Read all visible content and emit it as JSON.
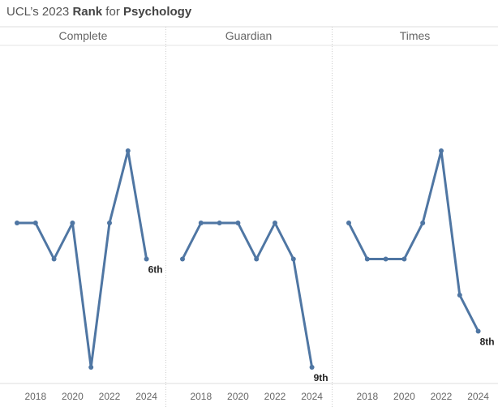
{
  "title": {
    "prefix": "UCL’s 2023 ",
    "bold1": "Rank",
    "middle": " for ",
    "bold2": "Psychology"
  },
  "line_color": "#4f76a3",
  "chart_data": [
    {
      "type": "line",
      "panel": "Complete",
      "x": [
        2017,
        2018,
        2019,
        2020,
        2021,
        2022,
        2023,
        2024
      ],
      "y": [
        5,
        5,
        6,
        5,
        9,
        5,
        3,
        6
      ],
      "end_label": "6th",
      "xticks": [
        "2018",
        "2020",
        "2022",
        "2024"
      ]
    },
    {
      "type": "line",
      "panel": "Guardian",
      "x": [
        2017,
        2018,
        2019,
        2020,
        2021,
        2022,
        2023,
        2024
      ],
      "y": [
        6,
        5,
        5,
        5,
        6,
        5,
        6,
        9
      ],
      "end_label": "9th",
      "xticks": [
        "2018",
        "2020",
        "2022",
        "2024"
      ]
    },
    {
      "type": "line",
      "panel": "Times",
      "x": [
        2017,
        2018,
        2019,
        2020,
        2021,
        2022,
        2023,
        2024
      ],
      "y": [
        5,
        6,
        6,
        6,
        5,
        3,
        7,
        8
      ],
      "end_label": "8th",
      "xticks": [
        "2018",
        "2020",
        "2022",
        "2024"
      ]
    }
  ]
}
